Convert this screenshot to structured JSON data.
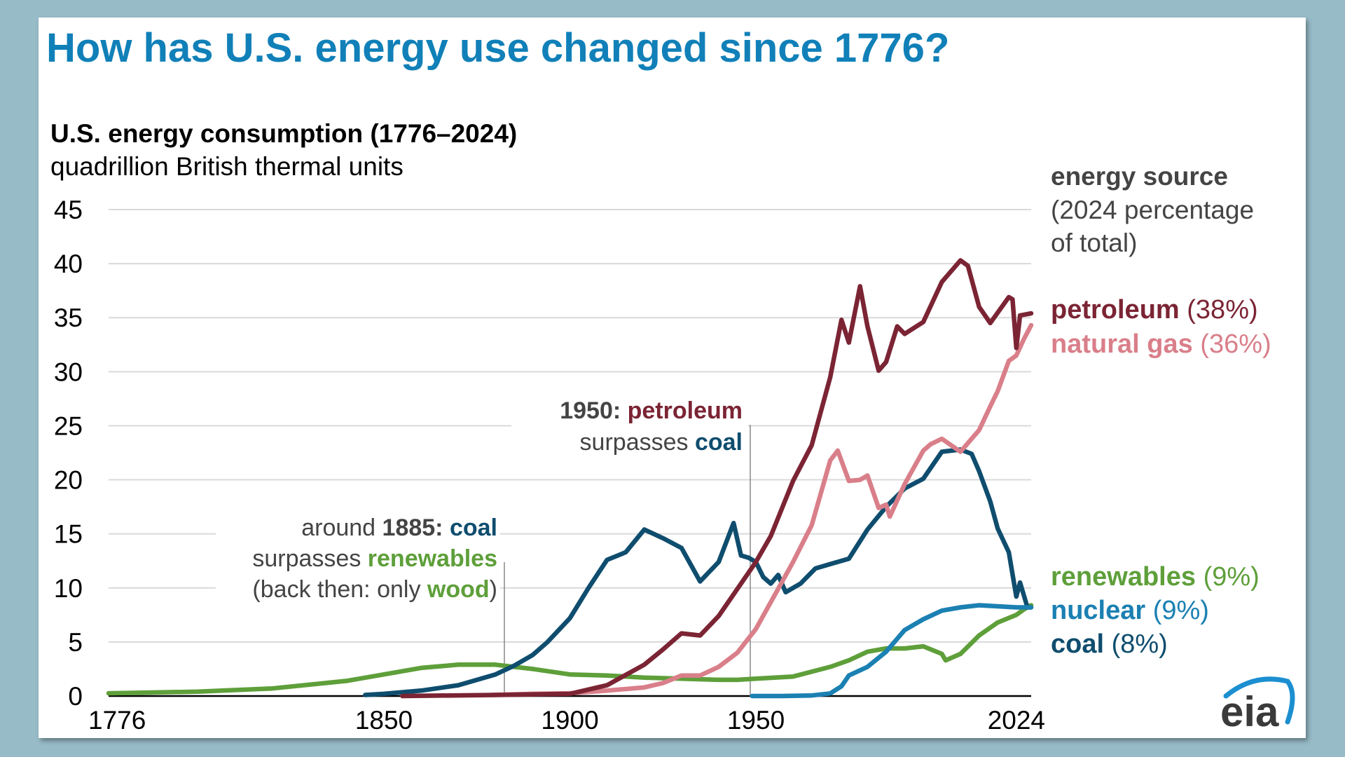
{
  "title": "How has U.S. energy use changed since 1776?",
  "colors": {
    "title": "#1180b8",
    "background": "#97bbc7",
    "grid": "#d9d9d9",
    "petroleum": "#7b2434",
    "natural_gas": "#d97f8a",
    "coal": "#0f4d6e",
    "nuclear": "#1b80b2",
    "renewables": "#5e9f3a",
    "annotation": "#444444"
  },
  "logo": {
    "text": "eia",
    "icon": "eia-swoosh-logo"
  },
  "chart_data": {
    "type": "line",
    "title": "U.S. energy consumption (1776–2024)",
    "subtitle": "quadrillion British thermal units",
    "xlim": [
      1776,
      2024
    ],
    "ylim": [
      0,
      45
    ],
    "x_ticks": [
      "1776",
      "1850",
      "1900",
      "1950",
      "2024"
    ],
    "y_ticks": [
      "0",
      "5",
      "10",
      "15",
      "20",
      "25",
      "30",
      "35",
      "40",
      "45"
    ],
    "grid": true,
    "legend_title": [
      "energy source",
      "(2024 percentage",
      "of total)"
    ],
    "legend_placement": "right",
    "series": [
      {
        "key": "renewables",
        "name": "renewables",
        "share": "(9%)",
        "x": [
          1776,
          1800,
          1820,
          1840,
          1850,
          1860,
          1870,
          1880,
          1885,
          1890,
          1900,
          1910,
          1920,
          1930,
          1940,
          1945,
          1950,
          1960,
          1970,
          1975,
          1980,
          1985,
          1990,
          1995,
          2000,
          2001,
          2005,
          2010,
          2015,
          2020,
          2022,
          2024
        ],
        "y": [
          0.25,
          0.4,
          0.7,
          1.4,
          2.0,
          2.6,
          2.9,
          2.9,
          2.7,
          2.5,
          2.0,
          1.9,
          1.7,
          1.6,
          1.5,
          1.5,
          1.6,
          1.8,
          2.7,
          3.3,
          4.1,
          4.4,
          4.4,
          4.6,
          3.9,
          3.3,
          3.9,
          5.6,
          6.8,
          7.5,
          8.0,
          8.4
        ]
      },
      {
        "key": "coal",
        "name": "coal",
        "share": "(8%)",
        "x": [
          1845,
          1850,
          1860,
          1870,
          1880,
          1885,
          1890,
          1894,
          1900,
          1905,
          1910,
          1915,
          1920,
          1925,
          1930,
          1935,
          1940,
          1944,
          1946,
          1948,
          1950,
          1952,
          1954,
          1956,
          1958,
          1962,
          1966,
          1970,
          1975,
          1980,
          1985,
          1990,
          1995,
          2000,
          2005,
          2008,
          2010,
          2013,
          2015,
          2018,
          2020,
          2021,
          2023,
          2024
        ],
        "y": [
          0.1,
          0.2,
          0.5,
          1.0,
          2.0,
          2.8,
          3.8,
          5.0,
          7.2,
          10.0,
          12.6,
          13.3,
          15.4,
          14.6,
          13.7,
          10.6,
          12.4,
          16.0,
          13.0,
          12.8,
          12.4,
          11.0,
          10.4,
          11.2,
          9.6,
          10.4,
          11.8,
          12.2,
          12.7,
          15.4,
          17.5,
          19.2,
          20.1,
          22.6,
          22.8,
          22.4,
          20.8,
          18.0,
          15.5,
          13.3,
          9.2,
          10.5,
          8.2,
          8.2
        ]
      },
      {
        "key": "nuclear",
        "name": "nuclear",
        "share": "(9%)",
        "x": [
          1949,
          1957,
          1965,
          1970,
          1973,
          1975,
          1980,
          1985,
          1990,
          1995,
          2000,
          2005,
          2010,
          2015,
          2020,
          2024
        ],
        "y": [
          0,
          0,
          0.05,
          0.24,
          0.9,
          1.9,
          2.7,
          4.1,
          6.1,
          7.1,
          7.9,
          8.2,
          8.4,
          8.3,
          8.2,
          8.2
        ]
      },
      {
        "key": "natural_gas",
        "name": "natural gas",
        "share": "(36%)",
        "x": [
          1879,
          1890,
          1900,
          1910,
          1920,
          1925,
          1930,
          1935,
          1940,
          1945,
          1950,
          1955,
          1960,
          1965,
          1970,
          1972,
          1975,
          1978,
          1980,
          1983,
          1985,
          1986,
          1990,
          1995,
          1997,
          2000,
          2005,
          2008,
          2010,
          2013,
          2015,
          2018,
          2020,
          2022,
          2024
        ],
        "y": [
          0.1,
          0.2,
          0.25,
          0.5,
          0.8,
          1.2,
          1.9,
          1.9,
          2.7,
          4.0,
          6.2,
          9.3,
          12.4,
          15.8,
          21.8,
          22.7,
          19.9,
          20.0,
          20.4,
          17.4,
          17.7,
          16.6,
          19.6,
          22.7,
          23.3,
          23.8,
          22.6,
          23.8,
          24.6,
          26.8,
          28.2,
          31.0,
          31.5,
          33.0,
          34.3
        ]
      },
      {
        "key": "petroleum",
        "name": "petroleum",
        "share": "(38%)",
        "x": [
          1855,
          1880,
          1900,
          1910,
          1920,
          1925,
          1930,
          1935,
          1940,
          1946,
          1950,
          1954,
          1960,
          1965,
          1970,
          1973,
          1975,
          1978,
          1980,
          1983,
          1985,
          1988,
          1990,
          1995,
          2000,
          2005,
          2007,
          2010,
          2013,
          2018,
          2019,
          2020,
          2021,
          2024
        ],
        "y": [
          0,
          0.1,
          0.2,
          1.0,
          2.9,
          4.3,
          5.8,
          5.6,
          7.4,
          10.4,
          12.4,
          14.8,
          19.9,
          23.2,
          29.5,
          34.8,
          32.7,
          37.9,
          34.2,
          30.1,
          30.9,
          34.2,
          33.5,
          34.6,
          38.3,
          40.3,
          39.8,
          36.0,
          34.5,
          36.9,
          36.7,
          32.2,
          35.2,
          35.4
        ]
      }
    ],
    "annotations": [
      {
        "key": "a1885",
        "lines": [
          [
            {
              "t": "around ",
              "c": "annotation",
              "b": false
            },
            {
              "t": "1885:",
              "c": "annotation",
              "b": true
            },
            {
              "t": " coal",
              "c": "coal",
              "b": true
            }
          ],
          [
            {
              "t": "surpasses ",
              "c": "annotation",
              "b": false
            },
            {
              "t": "renewables",
              "c": "renewables",
              "b": true
            }
          ],
          [
            {
              "t": "(back then: only ",
              "c": "annotation",
              "b": false
            },
            {
              "t": "wood",
              "c": "renewables",
              "b": true
            },
            {
              "t": ")",
              "c": "annotation",
              "b": false
            }
          ]
        ]
      },
      {
        "key": "a1950",
        "lines": [
          [
            {
              "t": "1950:",
              "c": "annotation",
              "b": true
            },
            {
              "t": " petroleum",
              "c": "petroleum",
              "b": true
            }
          ],
          [
            {
              "t": "surpasses ",
              "c": "annotation",
              "b": false
            },
            {
              "t": "coal",
              "c": "coal",
              "b": true
            }
          ]
        ]
      }
    ]
  }
}
